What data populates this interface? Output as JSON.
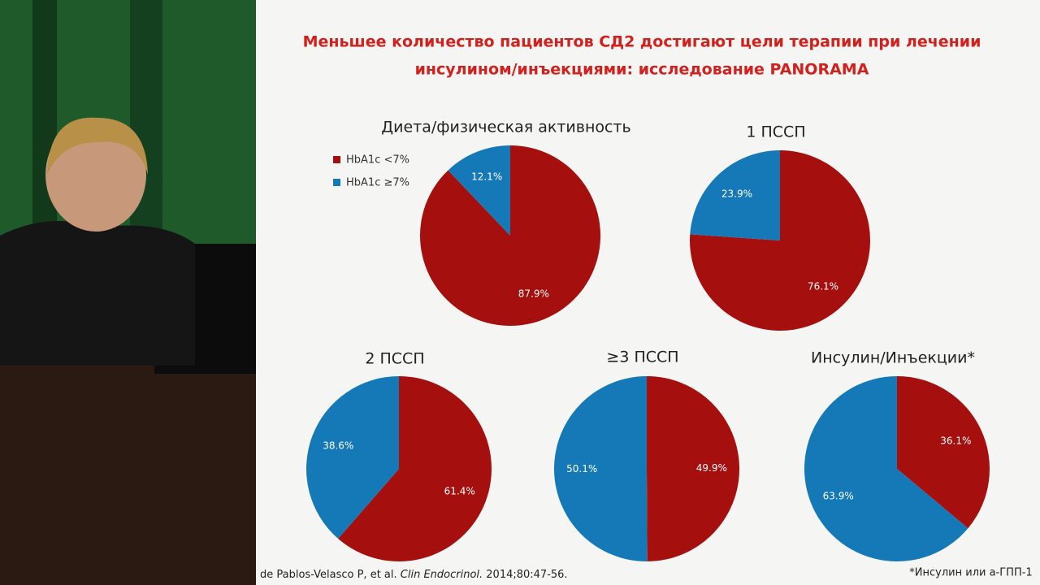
{
  "slide": {
    "title": [
      "Меньшее количество  пациентов СД2 достигают цели терапии при лечении",
      "инсулином/инъекциями: исследование PANORAMA"
    ],
    "citation": [
      "de Pablos-Velasco P, et al. ",
      "Clin Endocrinol.",
      " 2014;80:47-56."
    ],
    "footnote": "*Инсулин или а-ГПП-1"
  },
  "legend": [
    {
      "name": "HbA1c <7%",
      "color": "#a5100f"
    },
    {
      "name": "HbA1c ≥7%",
      "color": "#1579b7"
    }
  ],
  "chart_data": [
    {
      "type": "pie",
      "title": "Диета/физическая активность",
      "values": [
        87.9,
        12.1
      ],
      "value_labels": [
        "87.9%",
        "12.1%"
      ]
    },
    {
      "type": "pie",
      "title": "1 ПССП",
      "values": [
        76.1,
        23.9
      ],
      "value_labels": [
        "76.1%",
        "23.9%"
      ]
    },
    {
      "type": "pie",
      "title": "2 ПССП",
      "values": [
        61.4,
        38.6
      ],
      "value_labels": [
        "61.4%",
        "38.6%"
      ]
    },
    {
      "type": "pie",
      "title": "≥3 ПССП",
      "values": [
        49.9,
        50.1
      ],
      "value_labels": [
        "49.9%",
        "50.1%"
      ]
    },
    {
      "type": "pie",
      "title": "Инсулин/Инъекции*",
      "values": [
        36.1,
        63.9
      ],
      "value_labels": [
        "36.1%",
        "63.9%"
      ]
    }
  ]
}
